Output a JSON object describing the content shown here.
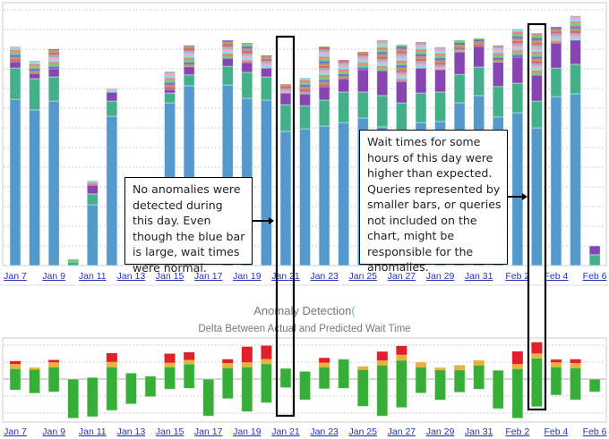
{
  "chart_data": [
    {
      "type": "bar",
      "stacked": true,
      "title": "",
      "xlabel": "",
      "ylabel": "",
      "grid": true,
      "ylim": [
        0,
        13.3
      ],
      "categories": [
        "Jan 7",
        "Jan 8",
        "Jan 9",
        "Jan 10",
        "Jan 11",
        "Jan 12",
        "Jan 13",
        "Jan 14",
        "Jan 15",
        "Jan 16",
        "Jan 17",
        "Jan 18",
        "Jan 19",
        "Jan 20",
        "Jan 21",
        "Jan 22",
        "Jan 23",
        "Jan 24",
        "Jan 25",
        "Jan 26",
        "Jan 27",
        "Jan 28",
        "Jan 29",
        "Jan 30",
        "Jan 31",
        "Feb 1",
        "Feb 2",
        "Feb 3",
        "Feb 4",
        "Feb 5",
        "Feb 6"
      ],
      "tick_labels": [
        "Jan 7",
        "Jan 9",
        "Jan 11",
        "Jan 13",
        "Jan 15",
        "Jan 17",
        "Jan 19",
        "Jan 21",
        "Jan 23",
        "Jan 25",
        "Jan 27",
        "Jan 29",
        "Jan 31",
        "Feb 2",
        "Feb 4",
        "Feb 6"
      ],
      "series": [
        {
          "color": "#5599cc",
          "values": [
            8.45,
            7.91,
            8.36,
            0,
            3.09,
            7.59,
            0,
            3.41,
            8.27,
            9.14,
            0,
            9.18,
            8.5,
            8.41,
            6.82,
            6.95,
            7.09,
            7.27,
            7.5,
            7.05,
            6.82,
            7.27,
            7.32,
            8.27,
            8.64,
            7.55,
            7.77,
            7.0,
            8.59,
            8.73,
            0
          ]
        },
        {
          "color": "#44b088",
          "values": [
            1.59,
            1.59,
            1.23,
            0.18,
            0.55,
            0.77,
            0,
            0,
            0.5,
            0.55,
            0,
            0.95,
            1.32,
            1.18,
            1.36,
            1.18,
            1.32,
            1.55,
            1.32,
            1.59,
            1.45,
            1.5,
            1.5,
            1.45,
            1.45,
            1.55,
            1.5,
            1.36,
            1.45,
            1.5,
            0.55
          ]
        },
        {
          "color": "#8844b0",
          "values": [
            0.32,
            0.27,
            0.41,
            0,
            0.45,
            0.45,
            0,
            0,
            0.18,
            0.41,
            0,
            0.41,
            0.5,
            0.45,
            0.59,
            0.59,
            0.68,
            0.68,
            1.14,
            1.27,
            1.09,
            1.27,
            1.14,
            1.14,
            1.05,
            1.23,
            1.32,
            1.32,
            1.27,
            1.23,
            0.45
          ]
        },
        {
          "color": "#c94f6d",
          "values": [
            0.77,
            0.64,
            1.0,
            0.14,
            0.23,
            0.18,
            0,
            0.18,
            0.91,
            1.09,
            0,
            0.91,
            1.0,
            0.64,
            0.45,
            0.82,
            2.05,
            0.95,
            0.91,
            1.55,
            1.86,
            1.32,
            1.14,
            0.59,
            0.41,
            0.86,
            1.45,
            2.14,
            0.82,
            1.23,
            0
          ]
        }
      ],
      "small_segment_colors": [
        "#c94f6d",
        "#b5883e",
        "#5a5ad1",
        "#5bc95b",
        "#e07070",
        "#7fd6d6",
        "#d99fd0",
        "#a0a0a0"
      ]
    },
    {
      "type": "bar",
      "stacked": true,
      "title": "Anomaly Detection",
      "subtitle": "Delta Between Actual and Predicted Wait Time",
      "xlabel": "",
      "ylabel": "",
      "grid": true,
      "ylim": [
        -2.4,
        2.4
      ],
      "categories": [
        "Jan 7",
        "Jan 8",
        "Jan 9",
        "Jan 10",
        "Jan 11",
        "Jan 12",
        "Jan 13",
        "Jan 14",
        "Jan 15",
        "Jan 16",
        "Jan 17",
        "Jan 18",
        "Jan 19",
        "Jan 20",
        "Jan 21",
        "Jan 22",
        "Jan 23",
        "Jan 24",
        "Jan 25",
        "Jan 26",
        "Jan 27",
        "Jan 28",
        "Jan 29",
        "Jan 30",
        "Jan 31",
        "Feb 1",
        "Feb 2",
        "Feb 3",
        "Feb 4",
        "Feb 5",
        "Feb 6"
      ],
      "tick_labels": [
        "Jan 7",
        "Jan 9",
        "Jan 11",
        "Jan 13",
        "Jan 15",
        "Jan 17",
        "Jan 19",
        "Jan 21",
        "Jan 23",
        "Jan 25",
        "Jan 27",
        "Jan 29",
        "Jan 31",
        "Feb 2",
        "Feb 4",
        "Feb 6"
      ],
      "series": [
        {
          "name": "",
          "color": "#37ae37",
          "low": [
            -0.64,
            -0.83,
            -0.75,
            -2.3,
            -2.21,
            -1.84,
            -1.46,
            -1.03,
            -0.59,
            -0.54,
            -2.17,
            -1.15,
            -1.91,
            -1.39,
            -0.5,
            -1.22,
            -0.57,
            -0.54,
            -1.6,
            -2.17,
            -1.67,
            -0.82,
            -1.23,
            -0.77,
            -0.59,
            -1.74,
            -2.3,
            -1.62,
            -0.94,
            -1.22,
            -0.75
          ],
          "high": [
            0.61,
            0.57,
            0.71,
            0,
            0.09,
            0.71,
            0.35,
            0.17,
            0.71,
            0.89,
            0,
            0.66,
            0.71,
            0.9,
            0.63,
            0.45,
            0.71,
            1.17,
            0.56,
            0.82,
            1.11,
            0.71,
            0.54,
            0.54,
            0.82,
            0.52,
            0.61,
            1.23,
            0.71,
            0.66,
            0
          ]
        },
        {
          "color": "#ebb13b",
          "values": [
            0.28,
            0.11,
            0.28,
            0,
            0,
            0.3,
            0,
            0,
            0.25,
            0.24,
            0,
            0.28,
            0.28,
            0.28,
            0,
            0,
            0.26,
            0,
            0.19,
            0.28,
            0.32,
            0.28,
            0.14,
            0.28,
            0.28,
            0,
            0.28,
            0.28,
            0.28,
            0.28,
            0
          ]
        },
        {
          "color": "#e0202a",
          "values": [
            0.17,
            0,
            0.14,
            0,
            0,
            0.52,
            0,
            0,
            0.54,
            0.45,
            0,
            0.23,
            0.92,
            0.79,
            0,
            0,
            0.28,
            0,
            0,
            0.52,
            0.52,
            0,
            0,
            0,
            0,
            0,
            0.74,
            0.66,
            0.16,
            0.23,
            0
          ]
        }
      ]
    }
  ],
  "annotations": {
    "no_anomaly": "No anomalies were detected during  this day. Even though the blue bar is large, wait times were normal.",
    "anomaly": "Wait times for some hours of this day were higher than expected. Queries represented by smaller bars, or queries not included on the chart, might be responsible for the anomalies."
  }
}
